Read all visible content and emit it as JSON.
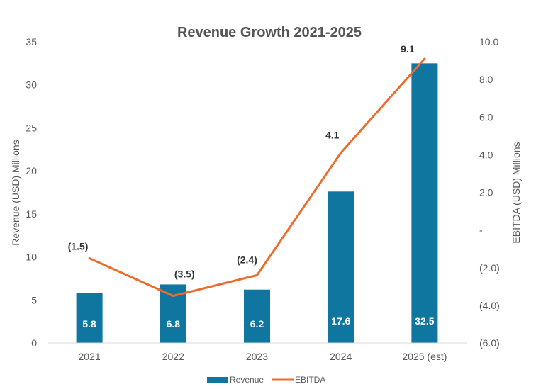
{
  "chart_data": {
    "type": "bar+line",
    "title": "Revenue Growth 2021-2025",
    "categories": [
      "2021",
      "2022",
      "2023",
      "2024",
      "2025 (est)"
    ],
    "series": [
      {
        "name": "Revenue",
        "type": "bar",
        "axis": "left",
        "values": [
          5.8,
          6.8,
          6.2,
          17.6,
          32.5
        ],
        "labels": [
          "5.8",
          "6.8",
          "6.2",
          "17.6",
          "32.5"
        ],
        "color": "#0e769f"
      },
      {
        "name": "EBITDA",
        "type": "line",
        "axis": "right",
        "values": [
          -1.5,
          -3.5,
          -2.4,
          4.1,
          9.1
        ],
        "labels": [
          "(1.5)",
          "(3.5)",
          "(2.4)",
          "4.1",
          "9.1"
        ],
        "color": "#ee6c2a"
      }
    ],
    "ylabel": "Revenue (USD) Millions",
    "y2label": "EBITDA (USD) Millions",
    "ylim": [
      0,
      35
    ],
    "y2lim": [
      -6,
      10
    ],
    "yticks": [
      "0",
      "5",
      "10",
      "15",
      "20",
      "25",
      "30",
      "35"
    ],
    "y2ticks": [
      "(6.0)",
      "(4.0)",
      "(2.0)",
      "-",
      "2.0",
      "4.0",
      "6.0",
      "8.0",
      "10.0"
    ],
    "grid": false,
    "legend": "bottom"
  }
}
